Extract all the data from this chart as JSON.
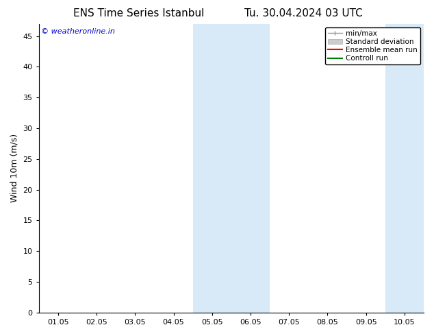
{
  "title_left": "ENS Time Series Istanbul",
  "title_right": "Tu. 30.04.2024 03 UTC",
  "ylabel": "Wind 10m (m/s)",
  "xlim_labels": [
    "01.05",
    "02.05",
    "03.05",
    "04.05",
    "05.05",
    "06.05",
    "07.05",
    "08.05",
    "09.05",
    "10.05"
  ],
  "ylim": [
    0,
    47
  ],
  "yticks": [
    0,
    5,
    10,
    15,
    20,
    25,
    30,
    35,
    40,
    45
  ],
  "shaded_regions": [
    {
      "xstart": 3.5,
      "xend": 5.5,
      "color": "#d8eaf8"
    },
    {
      "xstart": 8.5,
      "xend": 10.0,
      "color": "#d8eaf8"
    }
  ],
  "watermark_text": "© weatheronline.in",
  "watermark_color": "#0000cc",
  "legend_entries": [
    {
      "label": "min/max",
      "type": "errorbar",
      "color": "#999999"
    },
    {
      "label": "Standard deviation",
      "type": "patch",
      "color": "#cccccc"
    },
    {
      "label": "Ensemble mean run",
      "type": "line",
      "color": "#ff0000",
      "lw": 1.5
    },
    {
      "label": "Controll run",
      "type": "line",
      "color": "#008000",
      "lw": 1.5
    }
  ],
  "background_color": "#ffffff",
  "title_fontsize": 11,
  "ylabel_fontsize": 9,
  "tick_fontsize": 8,
  "legend_fontsize": 7.5
}
